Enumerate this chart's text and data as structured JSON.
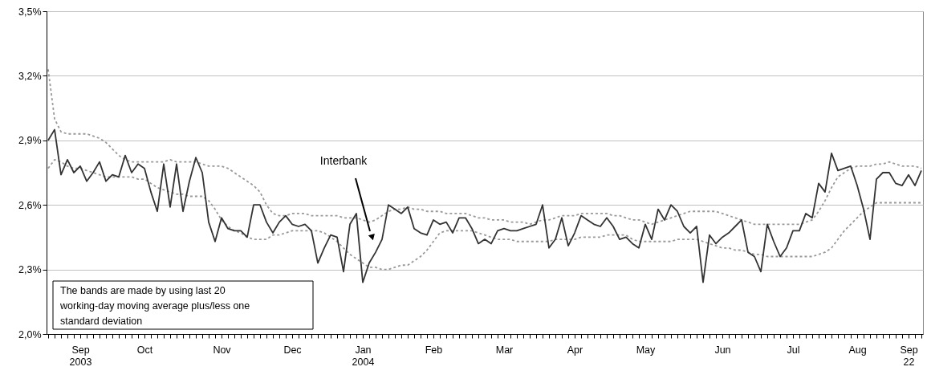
{
  "chart_data": {
    "type": "line",
    "categories": [
      null,
      null,
      null,
      null,
      null,
      "Sep 2003",
      null,
      null,
      null,
      null,
      null,
      null,
      null,
      null,
      null,
      "Oct",
      null,
      null,
      null,
      null,
      null,
      null,
      null,
      null,
      null,
      null,
      null,
      "Nov",
      null,
      null,
      null,
      null,
      null,
      null,
      null,
      null,
      null,
      null,
      "Dec",
      null,
      null,
      null,
      null,
      null,
      null,
      null,
      null,
      null,
      null,
      "Jan 2004",
      null,
      null,
      null,
      null,
      null,
      null,
      null,
      null,
      null,
      null,
      "Feb",
      null,
      null,
      null,
      null,
      null,
      null,
      null,
      null,
      null,
      null,
      "Mar",
      null,
      null,
      null,
      null,
      null,
      null,
      null,
      null,
      null,
      null,
      "Apr",
      null,
      null,
      null,
      null,
      null,
      null,
      null,
      null,
      null,
      null,
      "May",
      null,
      null,
      null,
      null,
      null,
      null,
      null,
      null,
      null,
      null,
      null,
      "Jun",
      null,
      null,
      null,
      null,
      null,
      null,
      null,
      null,
      null,
      null,
      "Jul",
      null,
      null,
      null,
      null,
      null,
      null,
      null,
      null,
      null,
      "Aug",
      null,
      null,
      null,
      null,
      null,
      null,
      null,
      "Sep 22",
      null,
      null
    ],
    "series": [
      {
        "color": "#333333",
        "line_style": "solid",
        "values": [
          2.9,
          2.95,
          2.74,
          2.81,
          2.75,
          2.78,
          2.71,
          2.75,
          2.8,
          2.71,
          2.74,
          2.73,
          2.83,
          2.75,
          2.79,
          2.77,
          2.66,
          2.57,
          2.79,
          2.59,
          2.79,
          2.57,
          2.71,
          2.82,
          2.75,
          2.52,
          2.43,
          2.54,
          2.49,
          2.48,
          2.48,
          2.45,
          2.6,
          2.6,
          2.52,
          2.47,
          2.52,
          2.55,
          2.51,
          2.5,
          2.51,
          2.48,
          2.33,
          2.4,
          2.46,
          2.45,
          2.29,
          2.51,
          2.56,
          2.24,
          2.33,
          2.38,
          2.44,
          2.6,
          2.58,
          2.56,
          2.59,
          2.49,
          2.47,
          2.46,
          2.53,
          2.51,
          2.52,
          2.47,
          2.54,
          2.54,
          2.49,
          2.42,
          2.44,
          2.42,
          2.48,
          2.49,
          2.48,
          2.48,
          2.49,
          2.5,
          2.51,
          2.6,
          2.4,
          2.44,
          2.54,
          2.41,
          2.47,
          2.55,
          2.53,
          2.51,
          2.5,
          2.54,
          2.5,
          2.44,
          2.45,
          2.42,
          2.4,
          2.51,
          2.44,
          2.58,
          2.53,
          2.6,
          2.57,
          2.5,
          2.47,
          2.5,
          2.24,
          2.46,
          2.42,
          2.45,
          2.47,
          2.5,
          2.53,
          2.38,
          2.36,
          2.29,
          2.51,
          2.43,
          2.36,
          2.4,
          2.48,
          2.48,
          2.56,
          2.54,
          2.7,
          2.66,
          2.84,
          2.76,
          2.77,
          2.78,
          2.69,
          2.58,
          2.44,
          2.72,
          2.75,
          2.75,
          2.7,
          2.69,
          2.74,
          2.69,
          2.76
        ]
      },
      {
        "color": "#999999",
        "line_style": "dotted",
        "values": [
          3.23,
          3.0,
          2.94,
          2.93,
          2.93,
          2.93,
          2.93,
          2.92,
          2.91,
          2.89,
          2.86,
          2.83,
          2.81,
          2.8,
          2.8,
          2.8,
          2.8,
          2.8,
          2.8,
          2.81,
          2.8,
          2.8,
          2.8,
          2.8,
          2.79,
          2.78,
          2.78,
          2.78,
          2.77,
          2.75,
          2.73,
          2.71,
          2.69,
          2.66,
          2.6,
          2.56,
          2.55,
          2.55,
          2.56,
          2.56,
          2.56,
          2.55,
          2.55,
          2.55,
          2.55,
          2.55,
          2.54,
          2.54,
          2.54,
          2.53,
          2.52,
          2.53,
          2.55,
          2.57,
          2.58,
          2.58,
          2.59,
          2.58,
          2.58,
          2.57,
          2.57,
          2.57,
          2.56,
          2.56,
          2.56,
          2.56,
          2.55,
          2.54,
          2.54,
          2.53,
          2.53,
          2.53,
          2.52,
          2.52,
          2.52,
          2.51,
          2.52,
          2.53,
          2.53,
          2.54,
          2.55,
          2.55,
          2.55,
          2.56,
          2.56,
          2.56,
          2.56,
          2.56,
          2.55,
          2.55,
          2.54,
          2.53,
          2.53,
          2.52,
          2.51,
          2.52,
          2.53,
          2.54,
          2.55,
          2.56,
          2.57,
          2.57,
          2.57,
          2.57,
          2.57,
          2.56,
          2.55,
          2.54,
          2.53,
          2.52,
          2.51,
          2.51,
          2.51,
          2.51,
          2.51,
          2.51,
          2.51,
          2.51,
          2.52,
          2.53,
          2.57,
          2.62,
          2.68,
          2.73,
          2.75,
          2.77,
          2.78,
          2.78,
          2.78,
          2.79,
          2.79,
          2.8,
          2.79,
          2.78,
          2.78,
          2.78,
          2.77
        ]
      },
      {
        "color": "#999999",
        "line_style": "dotted",
        "values": [
          2.77,
          2.81,
          2.8,
          2.78,
          2.77,
          2.77,
          2.76,
          2.75,
          2.74,
          2.73,
          2.73,
          2.73,
          2.73,
          2.73,
          2.72,
          2.72,
          2.7,
          2.68,
          2.67,
          2.66,
          2.65,
          2.65,
          2.64,
          2.64,
          2.64,
          2.62,
          2.58,
          2.53,
          2.5,
          2.48,
          2.47,
          2.45,
          2.44,
          2.44,
          2.44,
          2.46,
          2.46,
          2.47,
          2.48,
          2.48,
          2.48,
          2.48,
          2.48,
          2.47,
          2.45,
          2.43,
          2.4,
          2.37,
          2.35,
          2.33,
          2.31,
          2.31,
          2.3,
          2.3,
          2.31,
          2.32,
          2.32,
          2.34,
          2.36,
          2.39,
          2.43,
          2.47,
          2.48,
          2.48,
          2.48,
          2.48,
          2.48,
          2.47,
          2.46,
          2.45,
          2.44,
          2.44,
          2.44,
          2.43,
          2.43,
          2.43,
          2.43,
          2.43,
          2.43,
          2.44,
          2.44,
          2.44,
          2.44,
          2.45,
          2.45,
          2.45,
          2.45,
          2.46,
          2.46,
          2.46,
          2.46,
          2.44,
          2.43,
          2.43,
          2.43,
          2.43,
          2.43,
          2.43,
          2.44,
          2.44,
          2.44,
          2.44,
          2.43,
          2.42,
          2.41,
          2.4,
          2.4,
          2.39,
          2.39,
          2.38,
          2.37,
          2.37,
          2.36,
          2.36,
          2.36,
          2.36,
          2.36,
          2.36,
          2.36,
          2.36,
          2.37,
          2.38,
          2.4,
          2.44,
          2.48,
          2.51,
          2.54,
          2.57,
          2.59,
          2.61,
          2.61,
          2.61,
          2.61,
          2.61,
          2.61,
          2.61,
          2.61
        ]
      }
    ],
    "ylim": [
      2.0,
      3.5
    ],
    "yticks": [
      {
        "value": 2.0,
        "label": "2,0%"
      },
      {
        "value": 2.3,
        "label": "2,3%"
      },
      {
        "value": 2.6,
        "label": "2,6%"
      },
      {
        "value": 2.9,
        "label": "2,9%"
      },
      {
        "value": 3.2,
        "label": "3,2%"
      },
      {
        "value": 3.5,
        "label": "3,5%"
      }
    ],
    "grid": "y",
    "annotations": [
      "Interbank",
      "The bands are made by using last 20 working-day moving average plus/less one standard deviation"
    ]
  }
}
